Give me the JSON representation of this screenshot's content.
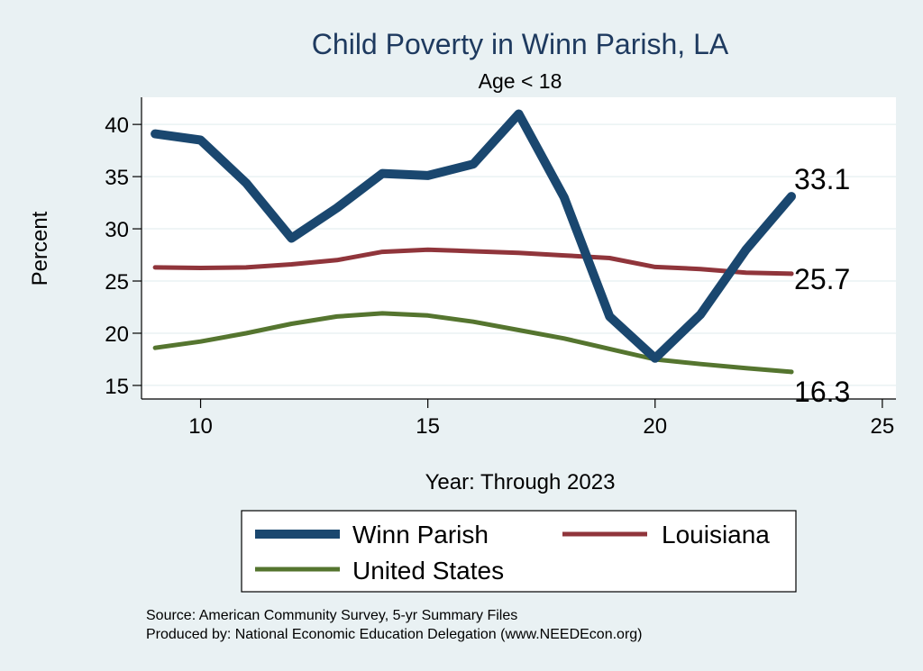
{
  "chart_data": {
    "type": "line",
    "title": "Child Poverty in Winn Parish, LA",
    "subtitle": "Age < 18",
    "xlabel": "Year: Through 2023",
    "ylabel": "Percent",
    "xlim": [
      8.7,
      25.3
    ],
    "ylim": [
      13.7,
      42.6
    ],
    "xticks": [
      10,
      15,
      20,
      25
    ],
    "yticks": [
      15,
      20,
      25,
      30,
      35,
      40
    ],
    "grid": true,
    "legend_position": "bottom",
    "series": [
      {
        "name": "Winn Parish",
        "color": "#1a476f",
        "stroke": "thick",
        "x": [
          9,
          10,
          11,
          12,
          13,
          14,
          15,
          16,
          17,
          18,
          19,
          20,
          21,
          22,
          23
        ],
        "y": [
          39.1,
          38.5,
          34.4,
          29.1,
          32.0,
          35.3,
          35.1,
          36.2,
          41.0,
          33.0,
          21.6,
          17.6,
          21.8,
          28.0,
          33.1
        ],
        "end_label": "33.1"
      },
      {
        "name": "Louisiana",
        "color": "#90353b",
        "stroke": "medium",
        "x": [
          9,
          10,
          11,
          12,
          13,
          14,
          15,
          16,
          17,
          18,
          19,
          20,
          21,
          22,
          23
        ],
        "y": [
          26.3,
          26.25,
          26.3,
          26.6,
          27.0,
          27.8,
          28.0,
          27.85,
          27.7,
          27.45,
          27.2,
          26.35,
          26.15,
          25.8,
          25.7
        ],
        "end_label": "25.7"
      },
      {
        "name": "United States",
        "color": "#55752f",
        "stroke": "medium",
        "x": [
          9,
          10,
          11,
          12,
          13,
          14,
          15,
          16,
          17,
          18,
          19,
          20,
          21,
          22,
          23
        ],
        "y": [
          18.6,
          19.2,
          20.0,
          20.9,
          21.6,
          21.9,
          21.7,
          21.1,
          20.3,
          19.5,
          18.5,
          17.5,
          17.05,
          16.65,
          16.3
        ],
        "end_label": "16.3"
      }
    ]
  },
  "source": {
    "line1": "Source: American Community Survey, 5-yr Summary Files",
    "line2": "Produced by: National Economic Education Delegation (www.NEEDEcon.org)"
  }
}
